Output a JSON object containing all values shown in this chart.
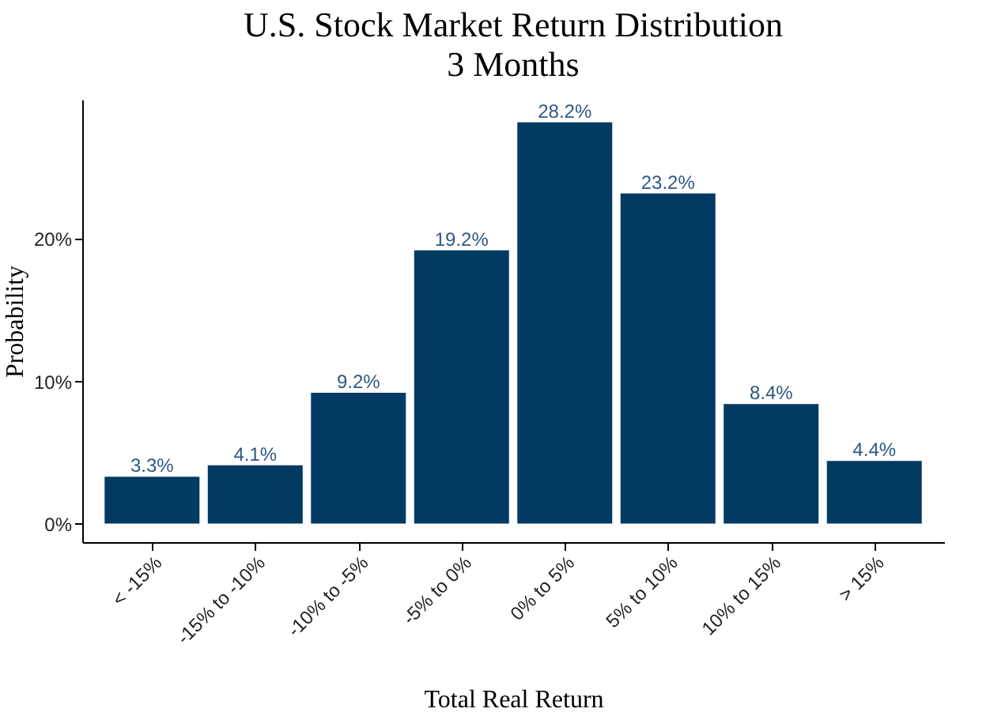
{
  "chart_data": {
    "type": "bar",
    "title": "U.S. Stock Market Return Distribution",
    "subtitle": "3 Months",
    "xlabel": "Total Real Return",
    "ylabel": "Probability",
    "categories": [
      "< -15%",
      "-15% to -10%",
      "-10% to -5%",
      "-5% to 0%",
      "0% to 5%",
      "5% to 10%",
      "10% to 15%",
      "> 15%"
    ],
    "values": [
      3.3,
      4.1,
      9.2,
      19.2,
      28.2,
      23.2,
      8.4,
      4.4
    ],
    "value_labels": [
      "3.3%",
      "4.1%",
      "9.2%",
      "19.2%",
      "28.2%",
      "23.2%",
      "8.4%",
      "4.4%"
    ],
    "color": "#023a63",
    "ylim": [
      -1.3,
      29.8
    ],
    "yticks": [
      {
        "value": 0,
        "label": "0%"
      },
      {
        "value": 10,
        "label": "10%"
      },
      {
        "value": 20,
        "label": "20%"
      }
    ],
    "grid": false
  }
}
